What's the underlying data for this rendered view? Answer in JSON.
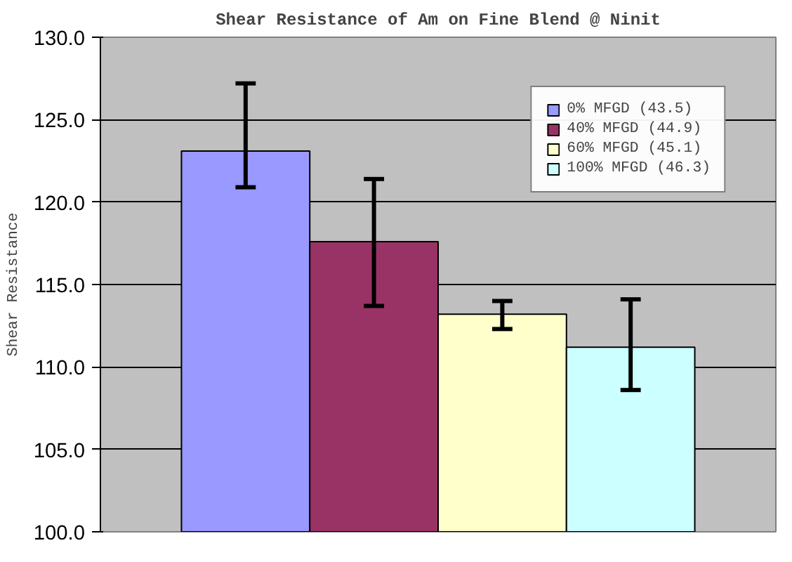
{
  "chart_data": {
    "type": "bar",
    "title": "Shear Resistance of Am on Fine Blend @ Ninit",
    "ylabel": "Shear Resistance",
    "categories": [
      null
    ],
    "series": [
      {
        "name": "0% MFGD (43.5)",
        "color": "#9999ff",
        "values": [
          123.1
        ],
        "errors": [
          [
            120.9,
            127.2
          ]
        ]
      },
      {
        "name": "40% MFGD (44.9)",
        "color": "#993366",
        "values": [
          117.6
        ],
        "errors": [
          [
            113.7,
            121.4
          ]
        ]
      },
      {
        "name": "60% MFGD (45.1)",
        "color": "#ffffcc",
        "values": [
          113.2
        ],
        "errors": [
          [
            112.3,
            114.0
          ]
        ]
      },
      {
        "name": "100% MFGD (46.3)",
        "color": "#ccffff",
        "values": [
          111.2
        ],
        "errors": [
          [
            108.6,
            114.1
          ]
        ]
      }
    ],
    "ylim": [
      100,
      130
    ],
    "yticks": [
      {
        "value": 100,
        "label": "100.0"
      },
      {
        "value": 105,
        "label": "105.0"
      },
      {
        "value": 110,
        "label": "110.0"
      },
      {
        "value": 115,
        "label": "115.0"
      },
      {
        "value": 120,
        "label": "120.0"
      },
      {
        "value": 125,
        "label": "125.0"
      },
      {
        "value": 130,
        "label": "130.0"
      }
    ],
    "grid": "y",
    "legend": "top right",
    "tick_labels": "y"
  }
}
